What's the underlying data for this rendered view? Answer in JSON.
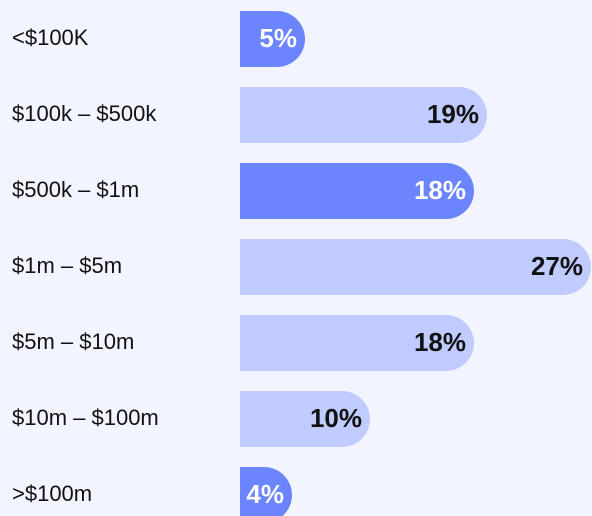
{
  "chart_data": {
    "type": "hbar",
    "categories": [
      "<$100K",
      "$100k – $500k",
      "$500k – $1m",
      "$1m – $5m",
      "$5m – $10m",
      "$10m – $100m",
      ">$100m"
    ],
    "values": [
      5,
      19,
      18,
      27,
      18,
      10,
      4
    ],
    "value_labels": [
      "5%",
      "19%",
      "18%",
      "27%",
      "18%",
      "10%",
      "4%"
    ],
    "colors": [
      "#6b84ff",
      "#c0cbff",
      "#6b84ff",
      "#c0cbff",
      "#c0cbff",
      "#c0cbff",
      "#6b84ff"
    ]
  }
}
